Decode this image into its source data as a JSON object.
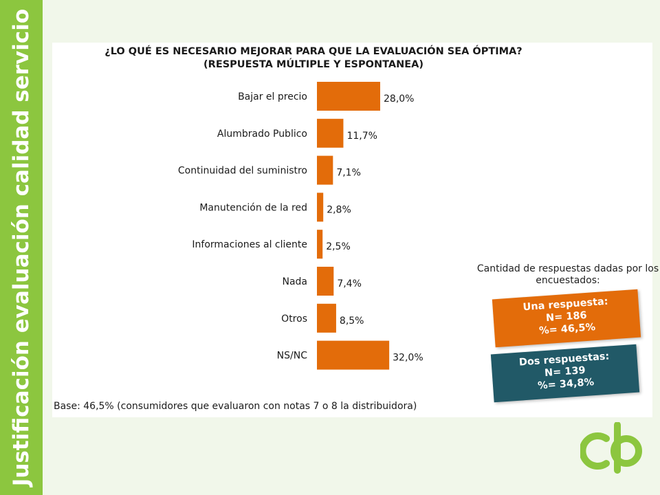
{
  "side_title": "Justificación evaluación calidad servicio",
  "chart_data": {
    "type": "bar",
    "orientation": "horizontal",
    "title": "¿LO QUÉ ES NECESARIO MEJORAR PARA QUE LA EVALUACIÓN SEA ÓPTIMA?",
    "subtitle": "(RESPUESTA MÚLTIPLE Y ESPONTANEA)",
    "categories": [
      "Bajar el precio",
      "Alumbrado Publico",
      "Continuidad del suministro",
      "Manutención de la red",
      "Informaciones al cliente",
      "Nada",
      "Otros",
      "NS/NC"
    ],
    "values": [
      28.0,
      11.7,
      7.1,
      2.8,
      2.5,
      7.4,
      8.5,
      32.0
    ],
    "labels": [
      "28,0%",
      "11,7%",
      "7,1%",
      "2,8%",
      "2,5%",
      "7,4%",
      "8,5%",
      "32,0%"
    ],
    "xlim": [
      0,
      40
    ],
    "bar_color": "#e36c0a",
    "grid": false,
    "legend": "none"
  },
  "base_note": "Base: 46,5% (consumidores que evaluaron con notas 7 o 8 la distribuidora)",
  "responses": {
    "heading": "Cantidad de respuestas dadas por los encuestados:",
    "one": {
      "title": "Una respuesta:",
      "n": "N= 186",
      "pct": "%= 46,5%",
      "color": "#e36c0a"
    },
    "two": {
      "title": "Dos respuestas:",
      "n": "N= 139",
      "pct": "%= 34,8%",
      "color": "#215967"
    }
  },
  "colors": {
    "accent_green": "#8cc63f",
    "background": "#f1f7ea"
  },
  "logo_icon": "cb-logo-icon"
}
